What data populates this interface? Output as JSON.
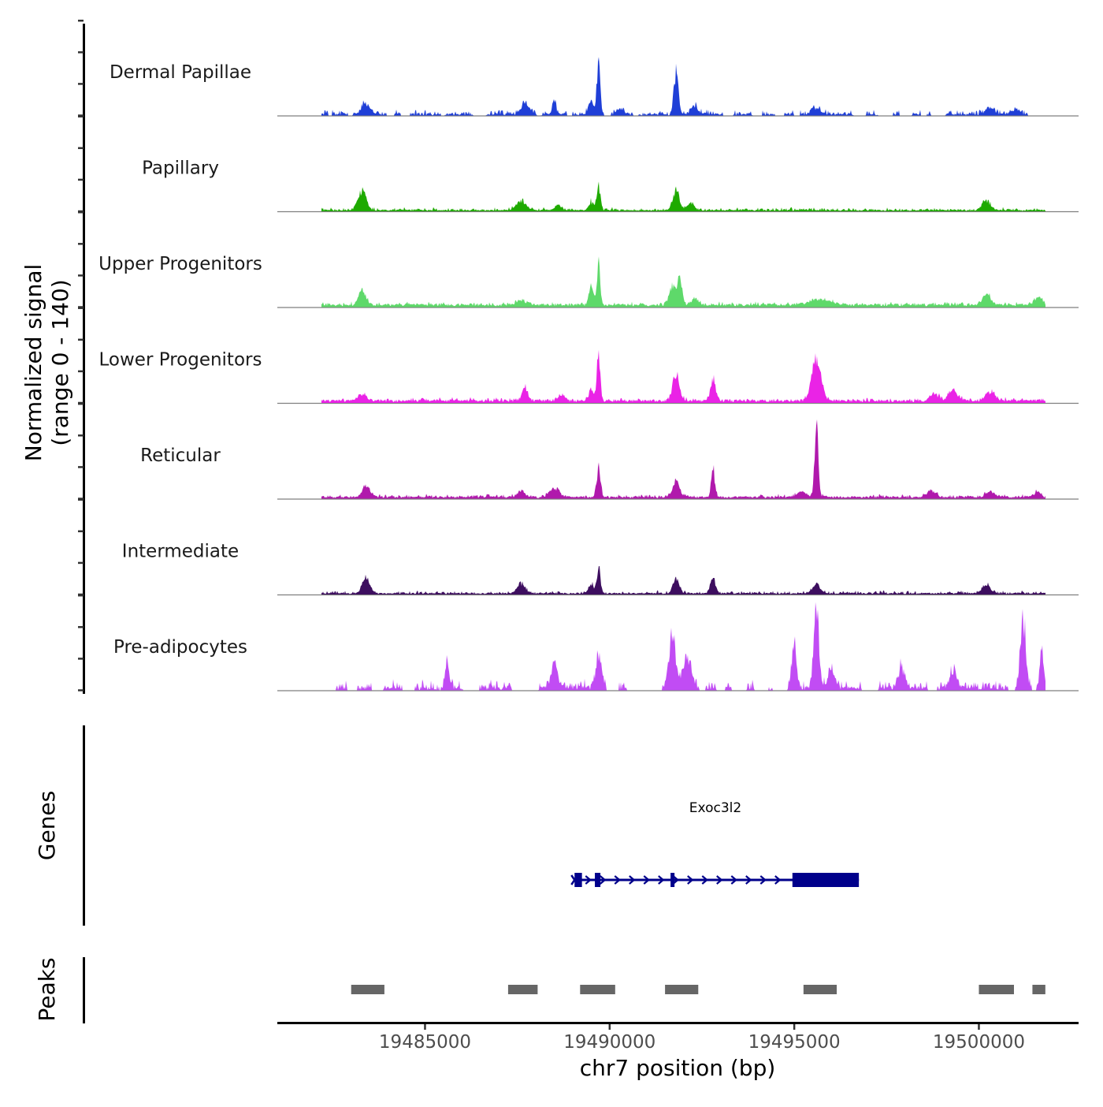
{
  "chart_data": {
    "type": "area",
    "title": "",
    "ylabel_line1": "Normalized signal",
    "ylabel_line2": "(range 0 - 140)",
    "ylim": [
      0,
      140
    ],
    "xlabel": "chr7 position (bp)",
    "xlim": [
      19481000,
      19502700
    ],
    "x_ticks": [
      19485000,
      19490000,
      19495000,
      19500000
    ],
    "x_tick_labels": [
      "19485000",
      "19490000",
      "19495000",
      "19500000"
    ],
    "signal_x_range": [
      19482200,
      19501800
    ],
    "tracks": [
      {
        "name": "Dermal Papillae",
        "color": "#1F3FD7",
        "peaks": [
          [
            19483400,
            14,
            120
          ],
          [
            19487700,
            16,
            110
          ],
          [
            19488500,
            18,
            50
          ],
          [
            19489500,
            18,
            70
          ],
          [
            19489700,
            82,
            45
          ],
          [
            19490300,
            10,
            90
          ],
          [
            19491800,
            64,
            60
          ],
          [
            19492300,
            12,
            90
          ],
          [
            19495600,
            10,
            110
          ],
          [
            19500300,
            10,
            110
          ],
          [
            19501000,
            8,
            100
          ]
        ],
        "baseline": 3,
        "noise": 7,
        "gaps": true
      },
      {
        "name": "Papillary",
        "color": "#1EAA00",
        "peaks": [
          [
            19483300,
            28,
            110
          ],
          [
            19487600,
            14,
            130
          ],
          [
            19488600,
            8,
            80
          ],
          [
            19489500,
            12,
            70
          ],
          [
            19489700,
            36,
            50
          ],
          [
            19491800,
            30,
            90
          ],
          [
            19492200,
            10,
            90
          ],
          [
            19500200,
            14,
            110
          ]
        ],
        "baseline": 2,
        "noise": 4,
        "gaps": false
      },
      {
        "name": "Upper Progenitors",
        "color": "#5ED96A",
        "peaks": [
          [
            19483300,
            22,
            100
          ],
          [
            19487600,
            7,
            150
          ],
          [
            19489500,
            30,
            60
          ],
          [
            19489700,
            62,
            45
          ],
          [
            19491700,
            28,
            90
          ],
          [
            19491900,
            40,
            60
          ],
          [
            19492300,
            10,
            90
          ],
          [
            19495700,
            8,
            300
          ],
          [
            19500200,
            16,
            110
          ],
          [
            19501600,
            10,
            120
          ]
        ],
        "baseline": 4,
        "noise": 4,
        "gaps": false
      },
      {
        "name": "Lower Progenitors",
        "color": "#EA23E6",
        "peaks": [
          [
            19483300,
            9,
            120
          ],
          [
            19487700,
            18,
            80
          ],
          [
            19488700,
            10,
            80
          ],
          [
            19489500,
            18,
            60
          ],
          [
            19489700,
            72,
            45
          ],
          [
            19491800,
            42,
            90
          ],
          [
            19492800,
            30,
            70
          ],
          [
            19495600,
            65,
            120
          ],
          [
            19498800,
            10,
            110
          ],
          [
            19499300,
            16,
            120
          ],
          [
            19500300,
            14,
            120
          ]
        ],
        "baseline": 4,
        "noise": 4,
        "gaps": false
      },
      {
        "name": "Reticular",
        "color": "#B019AC",
        "peaks": [
          [
            19483400,
            18,
            100
          ],
          [
            19487600,
            8,
            110
          ],
          [
            19488500,
            14,
            130
          ],
          [
            19489700,
            42,
            55
          ],
          [
            19491800,
            24,
            90
          ],
          [
            19492800,
            40,
            50
          ],
          [
            19495200,
            8,
            120
          ],
          [
            19495600,
            110,
            50
          ],
          [
            19498700,
            10,
            110
          ],
          [
            19500300,
            9,
            120
          ],
          [
            19501600,
            8,
            80
          ]
        ],
        "baseline": 3,
        "noise": 4,
        "gaps": false
      },
      {
        "name": "Intermediate",
        "color": "#3D0E5F",
        "peaks": [
          [
            19483400,
            24,
            100
          ],
          [
            19487600,
            14,
            110
          ],
          [
            19489500,
            14,
            70
          ],
          [
            19489700,
            40,
            50
          ],
          [
            19491800,
            22,
            80
          ],
          [
            19492800,
            22,
            70
          ],
          [
            19495600,
            14,
            110
          ],
          [
            19500200,
            14,
            110
          ]
        ],
        "baseline": 2,
        "noise": 4,
        "gaps": false
      },
      {
        "name": "Pre-adipocytes",
        "color": "#C14CF4",
        "peaks": [
          [
            19485600,
            35,
            60
          ],
          [
            19488500,
            36,
            90
          ],
          [
            19489700,
            52,
            70
          ],
          [
            19491700,
            82,
            90
          ],
          [
            19492100,
            46,
            110
          ],
          [
            19495000,
            70,
            60
          ],
          [
            19495600,
            118,
            70
          ],
          [
            19496000,
            24,
            90
          ],
          [
            19497900,
            32,
            90
          ],
          [
            19499300,
            25,
            80
          ],
          [
            19501200,
            112,
            70
          ],
          [
            19501700,
            66,
            50
          ]
        ],
        "baseline": 6,
        "noise": 12,
        "gaps": true
      }
    ],
    "genes_label": "Genes",
    "gene": {
      "name": "Exoc3l2",
      "start": 19489050,
      "end": 19496750,
      "strand": "+",
      "color": "#00008B",
      "exons": [
        [
          19489050,
          19489250
        ],
        [
          19489600,
          19489750
        ],
        [
          19491650,
          19491750
        ]
      ],
      "coding_block": [
        19494950,
        19496750
      ]
    },
    "peaks_label": "Peaks",
    "peak_regions": [
      [
        19483000,
        19483900
      ],
      [
        19487250,
        19488050
      ],
      [
        19489200,
        19490150
      ],
      [
        19491500,
        19492400
      ],
      [
        19495250,
        19496150
      ],
      [
        19500000,
        19500950
      ],
      [
        19501450,
        19501800
      ]
    ],
    "peak_color": "#666666"
  }
}
